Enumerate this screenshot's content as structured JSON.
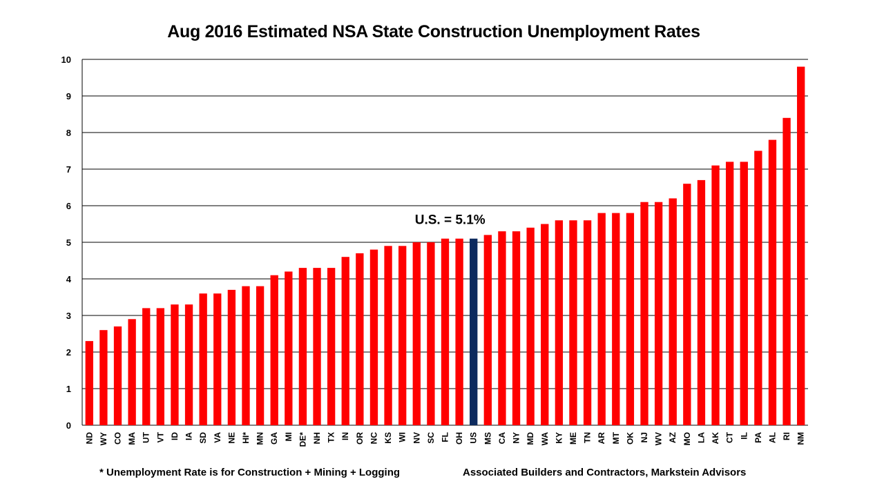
{
  "chart_data": {
    "type": "bar",
    "title": "Aug 2016 Estimated NSA State Construction Unemployment Rates",
    "xlabel": "",
    "ylabel": "",
    "ylim": [
      0,
      10
    ],
    "yticks": [
      0,
      1,
      2,
      3,
      4,
      5,
      6,
      7,
      8,
      9,
      10
    ],
    "grid": true,
    "categories": [
      "ND",
      "WY",
      "CO",
      "MA",
      "UT",
      "VT",
      "ID",
      "IA",
      "SD",
      "VA",
      "NE",
      "HI*",
      "MN",
      "GA",
      "MI",
      "DE*",
      "NH",
      "TX",
      "IN",
      "OR",
      "NC",
      "KS",
      "WI",
      "NV",
      "SC",
      "FL",
      "OH",
      "US",
      "MS",
      "CA",
      "NY",
      "MD",
      "WA",
      "KY",
      "ME",
      "TN",
      "AR",
      "MT",
      "OK",
      "NJ",
      "WV",
      "AZ",
      "MO",
      "LA",
      "AK",
      "CT",
      "IL",
      "PA",
      "AL",
      "RI",
      "NM"
    ],
    "values": [
      2.3,
      2.6,
      2.7,
      2.9,
      3.2,
      3.2,
      3.3,
      3.3,
      3.6,
      3.6,
      3.7,
      3.8,
      3.8,
      4.1,
      4.2,
      4.3,
      4.3,
      4.3,
      4.6,
      4.7,
      4.8,
      4.9,
      4.9,
      5.0,
      5.0,
      5.1,
      5.1,
      5.1,
      5.2,
      5.3,
      5.3,
      5.4,
      5.5,
      5.6,
      5.6,
      5.6,
      5.8,
      5.8,
      5.8,
      6.1,
      6.1,
      6.2,
      6.6,
      6.7,
      7.1,
      7.2,
      7.2,
      7.5,
      7.8,
      8.4,
      9.8
    ],
    "highlight_category": "US",
    "annotations": [
      {
        "text": "U.S. = 5.1%",
        "category": "US"
      }
    ]
  },
  "colors": {
    "bar": "#ff0000",
    "highlight": "#0c2a5e",
    "grid": "#000000",
    "text": "#000000"
  },
  "footer": {
    "note": "* Unemployment Rate is for Construction + Mining + Logging",
    "source": "Associated Builders and Contractors, Markstein Advisors"
  }
}
